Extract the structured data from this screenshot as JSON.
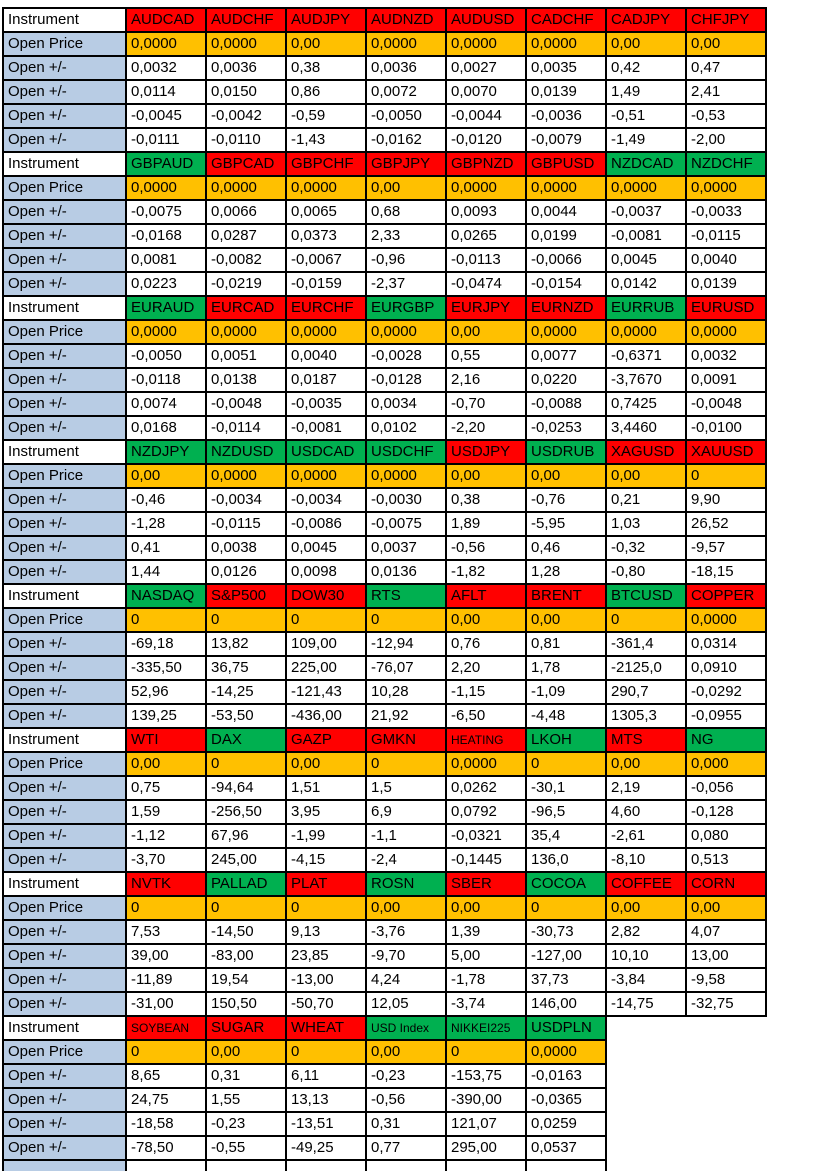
{
  "sheet": {
    "row_labels": {
      "instrument": "Instrument",
      "open_price": "Open Price",
      "open_delta": "Open +/-"
    },
    "colors": {
      "red": "#FF0000",
      "green": "#00B050",
      "orange": "#FFC000",
      "label_blue": "#B8CCE4",
      "grid": "#000000",
      "text": "#000000"
    },
    "blocks": [
      {
        "instruments": [
          {
            "name": "AUDCAD",
            "header_color": "red",
            "open_price": "0,0000",
            "open_deltas": [
              "0,0032",
              "0,0114",
              "-0,0045",
              "-0,0111"
            ]
          },
          {
            "name": "AUDCHF",
            "header_color": "red",
            "open_price": "0,0000",
            "open_deltas": [
              "0,0036",
              "0,0150",
              "-0,0042",
              "-0,0110"
            ]
          },
          {
            "name": "AUDJPY",
            "header_color": "red",
            "open_price": "0,00",
            "open_deltas": [
              "0,38",
              "0,86",
              "-0,59",
              "-1,43"
            ]
          },
          {
            "name": "AUDNZD",
            "header_color": "red",
            "open_price": "0,0000",
            "open_deltas": [
              "0,0036",
              "0,0072",
              "-0,0050",
              "-0,0162"
            ]
          },
          {
            "name": "AUDUSD",
            "header_color": "red",
            "open_price": "0,0000",
            "open_deltas": [
              "0,0027",
              "0,0070",
              "-0,0044",
              "-0,0120"
            ]
          },
          {
            "name": "CADCHF",
            "header_color": "red",
            "open_price": "0,0000",
            "open_deltas": [
              "0,0035",
              "0,0139",
              "-0,0036",
              "-0,0079"
            ]
          },
          {
            "name": "CADJPY",
            "header_color": "red",
            "open_price": "0,00",
            "open_deltas": [
              "0,42",
              "1,49",
              "-0,51",
              "-1,49"
            ]
          },
          {
            "name": "CHFJPY",
            "header_color": "red",
            "open_price": "0,00",
            "open_deltas": [
              "0,47",
              "2,41",
              "-0,53",
              "-2,00"
            ]
          }
        ]
      },
      {
        "instruments": [
          {
            "name": "GBPAUD",
            "header_color": "green",
            "open_price": "0,0000",
            "open_deltas": [
              "-0,0075",
              "-0,0168",
              "0,0081",
              "0,0223"
            ]
          },
          {
            "name": "GBPCAD",
            "header_color": "red",
            "open_price": "0,0000",
            "open_deltas": [
              "0,0066",
              "0,0287",
              "-0,0082",
              "-0,0219"
            ]
          },
          {
            "name": "GBPCHF",
            "header_color": "red",
            "open_price": "0,0000",
            "open_deltas": [
              "0,0065",
              "0,0373",
              "-0,0067",
              "-0,0159"
            ]
          },
          {
            "name": "GBPJPY",
            "header_color": "red",
            "open_price": "0,00",
            "open_deltas": [
              "0,68",
              "2,33",
              "-0,96",
              "-2,37"
            ]
          },
          {
            "name": "GBPNZD",
            "header_color": "red",
            "open_price": "0,0000",
            "open_deltas": [
              "0,0093",
              "0,0265",
              "-0,0113",
              "-0,0474"
            ]
          },
          {
            "name": "GBPUSD",
            "header_color": "red",
            "open_price": "0,0000",
            "open_deltas": [
              "0,0044",
              "0,0199",
              "-0,0066",
              "-0,0154"
            ]
          },
          {
            "name": "NZDCAD",
            "header_color": "green",
            "open_price": "0,0000",
            "open_deltas": [
              "-0,0037",
              "-0,0081",
              "0,0045",
              "0,0142"
            ]
          },
          {
            "name": "NZDCHF",
            "header_color": "green",
            "open_price": "0,0000",
            "open_deltas": [
              "-0,0033",
              "-0,0115",
              "0,0040",
              "0,0139"
            ]
          }
        ]
      },
      {
        "instruments": [
          {
            "name": "EURAUD",
            "header_color": "green",
            "open_price": "0,0000",
            "open_deltas": [
              "-0,0050",
              "-0,0118",
              "0,0074",
              "0,0168"
            ]
          },
          {
            "name": "EURCAD",
            "header_color": "red",
            "open_price": "0,0000",
            "open_deltas": [
              "0,0051",
              "0,0138",
              "-0,0048",
              "-0,0114"
            ]
          },
          {
            "name": "EURCHF",
            "header_color": "red",
            "open_price": "0,0000",
            "open_deltas": [
              "0,0040",
              "0,0187",
              "-0,0035",
              "-0,0081"
            ]
          },
          {
            "name": "EURGBP",
            "header_color": "green",
            "open_price": "0,0000",
            "open_deltas": [
              "-0,0028",
              "-0,0128",
              "0,0034",
              "0,0102"
            ]
          },
          {
            "name": "EURJPY",
            "header_color": "red",
            "open_price": "0,00",
            "open_deltas": [
              "0,55",
              "2,16",
              "-0,70",
              "-2,20"
            ]
          },
          {
            "name": "EURNZD",
            "header_color": "red",
            "open_price": "0,0000",
            "open_deltas": [
              "0,0077",
              "0,0220",
              "-0,0088",
              "-0,0253"
            ]
          },
          {
            "name": "EURRUB",
            "header_color": "green",
            "open_price": "0,0000",
            "open_deltas": [
              "-0,6371",
              "-3,7670",
              "0,7425",
              "3,4460"
            ]
          },
          {
            "name": "EURUSD",
            "header_color": "red",
            "open_price": "0,0000",
            "open_deltas": [
              "0,0032",
              "0,0091",
              "-0,0048",
              "-0,0100"
            ]
          }
        ]
      },
      {
        "instruments": [
          {
            "name": "NZDJPY",
            "header_color": "green",
            "open_price": "0,00",
            "open_deltas": [
              "-0,46",
              "-1,28",
              "0,41",
              "1,44"
            ]
          },
          {
            "name": "NZDUSD",
            "header_color": "green",
            "open_price": "0,0000",
            "open_deltas": [
              "-0,0034",
              "-0,0115",
              "0,0038",
              "0,0126"
            ]
          },
          {
            "name": "USDCAD",
            "header_color": "green",
            "open_price": "0,0000",
            "open_deltas": [
              "-0,0034",
              "-0,0086",
              "0,0045",
              "0,0098"
            ]
          },
          {
            "name": "USDCHF",
            "header_color": "green",
            "open_price": "0,0000",
            "open_deltas": [
              "-0,0030",
              "-0,0075",
              "0,0037",
              "0,0136"
            ]
          },
          {
            "name": "USDJPY",
            "header_color": "red",
            "open_price": "0,00",
            "open_deltas": [
              "0,38",
              "1,89",
              "-0,56",
              "-1,82"
            ]
          },
          {
            "name": "USDRUB",
            "header_color": "green",
            "open_price": "0,00",
            "open_deltas": [
              "-0,76",
              "-5,95",
              "0,46",
              "1,28"
            ]
          },
          {
            "name": "XAGUSD",
            "header_color": "red",
            "open_price": "0,00",
            "open_deltas": [
              "0,21",
              "1,03",
              "-0,32",
              "-0,80"
            ]
          },
          {
            "name": "XAUUSD",
            "header_color": "red",
            "open_price": "0",
            "open_deltas": [
              "9,90",
              "26,52",
              "-9,57",
              "-18,15"
            ]
          }
        ]
      },
      {
        "instruments": [
          {
            "name": "NASDAQ",
            "header_color": "green",
            "open_price": "0",
            "open_deltas": [
              "-69,18",
              "-335,50",
              "52,96",
              "139,25"
            ]
          },
          {
            "name": "S&P500",
            "header_color": "red",
            "open_price": "0",
            "open_deltas": [
              "13,82",
              "36,75",
              "-14,25",
              "-53,50"
            ]
          },
          {
            "name": "DOW30",
            "header_color": "red",
            "open_price": "0",
            "open_deltas": [
              "109,00",
              "225,00",
              "-121,43",
              "-436,00"
            ]
          },
          {
            "name": "RTS",
            "header_color": "green",
            "open_price": "0",
            "open_deltas": [
              "-12,94",
              "-76,07",
              "10,28",
              "21,92"
            ]
          },
          {
            "name": "AFLT",
            "header_color": "red",
            "open_price": "0,00",
            "open_deltas": [
              "0,76",
              "2,20",
              "-1,15",
              "-6,50"
            ]
          },
          {
            "name": "BRENT",
            "header_color": "red",
            "open_price": "0,00",
            "open_deltas": [
              "0,81",
              "1,78",
              "-1,09",
              "-4,48"
            ]
          },
          {
            "name": "BTCUSD",
            "header_color": "green",
            "open_price": "0",
            "open_deltas": [
              "-361,4",
              "-2125,0",
              "290,7",
              "1305,3"
            ]
          },
          {
            "name": "COPPER",
            "header_color": "red",
            "open_price": "0,0000",
            "open_deltas": [
              "0,0314",
              "0,0910",
              "-0,0292",
              "-0,0955"
            ]
          }
        ]
      },
      {
        "instruments": [
          {
            "name": "WTI",
            "header_color": "red",
            "open_price": "0,00",
            "open_deltas": [
              "0,75",
              "1,59",
              "-1,12",
              "-3,70"
            ]
          },
          {
            "name": "DAX",
            "header_color": "green",
            "open_price": "0",
            "open_deltas": [
              "-94,64",
              "-256,50",
              "67,96",
              "245,00"
            ]
          },
          {
            "name": "GAZP",
            "header_color": "red",
            "open_price": "0,00",
            "open_deltas": [
              "1,51",
              "3,95",
              "-1,99",
              "-4,15"
            ]
          },
          {
            "name": "GMKN",
            "header_color": "red",
            "open_price": "0",
            "open_deltas": [
              "1,5",
              "6,9",
              "-1,1",
              "-2,4"
            ]
          },
          {
            "name": "HEATING",
            "header_color": "red",
            "open_price": "0,0000",
            "open_deltas": [
              "0,0262",
              "0,0792",
              "-0,0321",
              "-0,1445"
            ]
          },
          {
            "name": "LKOH",
            "header_color": "green",
            "open_price": "0",
            "open_deltas": [
              "-30,1",
              "-96,5",
              "35,4",
              "136,0"
            ]
          },
          {
            "name": "MTS",
            "header_color": "red",
            "open_price": "0,00",
            "open_deltas": [
              "2,19",
              "4,60",
              "-2,61",
              "-8,10"
            ]
          },
          {
            "name": "NG",
            "header_color": "green",
            "open_price": "0,000",
            "open_deltas": [
              "-0,056",
              "-0,128",
              "0,080",
              "0,513"
            ]
          }
        ]
      },
      {
        "instruments": [
          {
            "name": "NVTK",
            "header_color": "red",
            "open_price": "0",
            "open_deltas": [
              "7,53",
              "39,00",
              "-11,89",
              "-31,00"
            ]
          },
          {
            "name": "PALLAD",
            "header_color": "green",
            "open_price": "0",
            "open_deltas": [
              "-14,50",
              "-83,00",
              "19,54",
              "150,50"
            ]
          },
          {
            "name": "PLAT",
            "header_color": "red",
            "open_price": "0",
            "open_deltas": [
              "9,13",
              "23,85",
              "-13,00",
              "-50,70"
            ]
          },
          {
            "name": "ROSN",
            "header_color": "green",
            "open_price": "0,00",
            "open_deltas": [
              "-3,76",
              "-9,70",
              "4,24",
              "12,05"
            ]
          },
          {
            "name": "SBER",
            "header_color": "red",
            "open_price": "0,00",
            "open_deltas": [
              "1,39",
              "5,00",
              "-1,78",
              "-3,74"
            ]
          },
          {
            "name": "COCOA",
            "header_color": "green",
            "open_price": "0",
            "open_deltas": [
              "-30,73",
              "-127,00",
              "37,73",
              "146,00"
            ]
          },
          {
            "name": "COFFEE",
            "header_color": "red",
            "open_price": "0,00",
            "open_deltas": [
              "2,82",
              "10,10",
              "-3,84",
              "-14,75"
            ]
          },
          {
            "name": "CORN",
            "header_color": "red",
            "open_price": "0,00",
            "open_deltas": [
              "4,07",
              "13,00",
              "-9,58",
              "-32,75"
            ]
          }
        ]
      },
      {
        "instruments": [
          {
            "name": "SOYBEAN",
            "header_color": "red",
            "open_price": "0",
            "open_deltas": [
              "8,65",
              "24,75",
              "-18,58",
              "-78,50"
            ]
          },
          {
            "name": "SUGAR",
            "header_color": "red",
            "open_price": "0,00",
            "open_deltas": [
              "0,31",
              "1,55",
              "-0,23",
              "-0,55"
            ]
          },
          {
            "name": "WHEAT",
            "header_color": "red",
            "open_price": "0",
            "open_deltas": [
              "6,11",
              "13,13",
              "-13,51",
              "-49,25"
            ]
          },
          {
            "name": "USD Index",
            "header_color": "green",
            "open_price": "0,00",
            "open_deltas": [
              "-0,23",
              "-0,56",
              "0,31",
              "0,77"
            ]
          },
          {
            "name": "NIKKEI225",
            "header_color": "green",
            "open_price": "0",
            "open_deltas": [
              "-153,75",
              "-390,00",
              "121,07",
              "295,00"
            ]
          },
          {
            "name": "USDPLN",
            "header_color": "green",
            "open_price": "0,0000",
            "open_deltas": [
              "-0,0163",
              "-0,0365",
              "0,0259",
              "0,0537"
            ]
          }
        ]
      }
    ]
  }
}
